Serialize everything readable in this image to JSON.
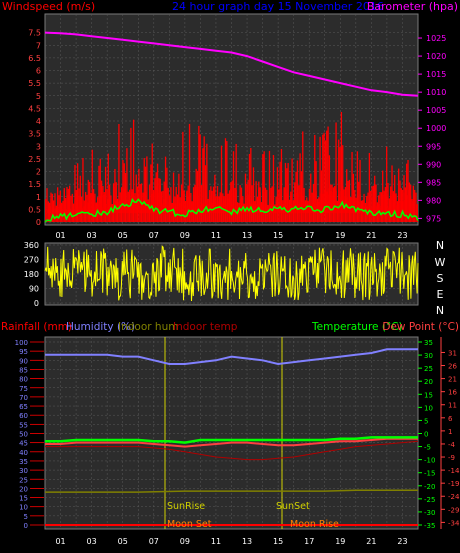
{
  "header": {
    "left_label": "Windspeed (m/s)",
    "title": "24 hour graph day  15 November 2016",
    "right_label": "Barometer (hpa)"
  },
  "hour_ticks": [
    "01",
    "03",
    "05",
    "07",
    "09",
    "11",
    "13",
    "15",
    "17",
    "19",
    "21",
    "23"
  ],
  "compass_labels": [
    "N",
    "W",
    "S",
    "E",
    "N"
  ],
  "bottom_header": {
    "rainfall": "Rainfall (mm)",
    "humidity": "Humidity (%)",
    "indoor_hum": "Indoor hum",
    "indoor_temp": "Indoor temp",
    "temperature": "Temperature (°C)",
    "dew_point": "Dew Point (°C)"
  },
  "events": {
    "sunrise": "SunRise",
    "sunset": "SunSet",
    "moonset": "Moon Set",
    "moonrise": "Moon Rise"
  },
  "colors": {
    "wind": "#ff0000",
    "gust": "#ff0000",
    "avg_wind": "#00ff00",
    "barometer": "#ff00ff",
    "title": "#0000ff",
    "direction": "#ffff00",
    "humidity": "#8080ff",
    "temperature": "#00ff00",
    "dewpoint": "#ff4040",
    "indoor_temp": "#b00000",
    "indoor_hum": "#808000",
    "rainfall": "#ff0000"
  },
  "chart_data": [
    {
      "type": "line",
      "id": "wind_baro",
      "x_label": "hour",
      "xlim": [
        0,
        24
      ],
      "y_left": {
        "label": "Windspeed (m/s)",
        "ylim": [
          0,
          8
        ],
        "ticks": [
          0,
          0.5,
          1,
          1.5,
          2,
          2.5,
          3,
          3.5,
          4,
          4.5,
          5,
          5.5,
          6,
          6.5,
          7,
          7.5
        ]
      },
      "y_right": {
        "label": "Barometer (hpa)",
        "ylim": [
          974,
          1030
        ],
        "ticks": [
          975,
          980,
          985,
          990,
          995,
          1000,
          1005,
          1010,
          1015,
          1020,
          1025
        ]
      },
      "series": [
        {
          "name": "Barometer",
          "axis": "right",
          "x": [
            0,
            1,
            2,
            3,
            4,
            5,
            6,
            7,
            8,
            9,
            10,
            11,
            12,
            13,
            14,
            15,
            16,
            17,
            18,
            19,
            20,
            21,
            22,
            23,
            24
          ],
          "y": [
            1026.5,
            1026.3,
            1026,
            1025.5,
            1025,
            1024.5,
            1024,
            1023.5,
            1023,
            1022.5,
            1022,
            1021.5,
            1021,
            1020,
            1018.5,
            1017,
            1015.5,
            1014.5,
            1013.5,
            1012.5,
            1011.5,
            1010.5,
            1010,
            1009.3,
            1009
          ]
        },
        {
          "name": "Wind gust",
          "axis": "left",
          "x": [
            0,
            1,
            2,
            3,
            4,
            5,
            6,
            7,
            8,
            9,
            10,
            11,
            12,
            13,
            14,
            15,
            16,
            17,
            18,
            19,
            20,
            21,
            22,
            23,
            24
          ],
          "y": [
            1.5,
            1.5,
            2.5,
            3.5,
            3,
            5,
            4.5,
            3.5,
            3.5,
            4.5,
            4,
            4,
            3,
            4,
            4,
            3,
            4,
            4,
            4,
            4.5,
            4,
            3,
            3,
            3.5,
            1.5
          ]
        },
        {
          "name": "Average wind",
          "axis": "left",
          "x": [
            0,
            1,
            2,
            3,
            4,
            5,
            6,
            7,
            8,
            9,
            10,
            11,
            12,
            13,
            14,
            15,
            16,
            17,
            18,
            19,
            20,
            21,
            22,
            23,
            24
          ],
          "y": [
            0.1,
            0.2,
            0.3,
            0.3,
            0.4,
            0.7,
            0.8,
            0.5,
            0.4,
            0.3,
            0.5,
            0.5,
            0.4,
            0.5,
            0.5,
            0.5,
            0.5,
            0.5,
            0.5,
            0.7,
            0.5,
            0.4,
            0.3,
            0.3,
            0.1
          ]
        }
      ]
    },
    {
      "type": "line",
      "id": "wind_direction",
      "xlim": [
        0,
        24
      ],
      "ylim": [
        0,
        360
      ],
      "yticks": [
        0,
        90,
        180,
        270,
        360
      ],
      "series": [
        {
          "name": "Wind direction",
          "x": [
            0,
            1,
            2,
            3,
            4,
            5,
            6,
            7,
            8,
            9,
            10,
            11,
            12,
            13,
            14,
            15,
            16,
            17,
            18,
            19,
            20,
            21,
            22,
            23,
            24
          ],
          "y": [
            200,
            180,
            190,
            170,
            185,
            175,
            180,
            190,
            200,
            180,
            170,
            175,
            185,
            180,
            175,
            190,
            180,
            185,
            190,
            175,
            180,
            185,
            190,
            180,
            185
          ]
        }
      ]
    },
    {
      "type": "line",
      "id": "temp_hum",
      "xlim": [
        0,
        24
      ],
      "y_left": {
        "label": "Humidity (%)",
        "ylim": [
          0,
          100
        ],
        "ticks": [
          0,
          5,
          10,
          15,
          20,
          25,
          30,
          35,
          40,
          45,
          50,
          55,
          60,
          65,
          70,
          75,
          80,
          85,
          90,
          95,
          100
        ]
      },
      "y_right_temp": {
        "label": "Temperature (°C)",
        "ylim": [
          -35,
          35
        ],
        "ticks": [
          -35,
          -30,
          -25,
          -20,
          -15,
          -10,
          -5,
          0,
          5,
          10,
          15,
          20,
          25,
          30,
          35
        ]
      },
      "y_right_dew": {
        "label": "Dew Point (°C)",
        "ylim": [
          -35,
          35
        ],
        "ticks": [
          -34,
          -29,
          -24,
          -19,
          -14,
          -9,
          -4,
          1,
          6,
          11,
          16,
          21,
          26,
          31
        ]
      },
      "series": [
        {
          "name": "Humidity",
          "axis": "left",
          "x": [
            0,
            1,
            2,
            3,
            4,
            5,
            6,
            7,
            8,
            9,
            10,
            11,
            12,
            13,
            14,
            15,
            16,
            17,
            18,
            19,
            20,
            21,
            22,
            23,
            24
          ],
          "y": [
            93,
            93,
            93,
            93,
            93,
            92,
            92,
            90,
            88,
            88,
            89,
            90,
            92,
            91,
            90,
            88,
            89,
            90,
            91,
            92,
            93,
            94,
            96,
            96,
            96
          ]
        },
        {
          "name": "Temperature",
          "axis": "right",
          "x": [
            0,
            1,
            2,
            3,
            4,
            5,
            6,
            7,
            8,
            9,
            10,
            11,
            12,
            13,
            14,
            15,
            16,
            17,
            18,
            19,
            20,
            21,
            22,
            23,
            24
          ],
          "y": [
            -3,
            -3,
            -2.5,
            -2.5,
            -2.5,
            -2.5,
            -2.5,
            -3,
            -3,
            -3.5,
            -2.5,
            -2.5,
            -2.5,
            -2.5,
            -2.5,
            -2.5,
            -2.5,
            -2.5,
            -2.5,
            -2,
            -2,
            -1.5,
            -1.5,
            -1.5,
            -1.5
          ]
        },
        {
          "name": "Dew Point",
          "axis": "right",
          "x": [
            0,
            1,
            2,
            3,
            4,
            5,
            6,
            7,
            8,
            9,
            10,
            11,
            12,
            13,
            14,
            15,
            16,
            17,
            18,
            19,
            20,
            21,
            22,
            23,
            24
          ],
          "y": [
            -4,
            -4,
            -3.5,
            -3.5,
            -3.5,
            -3.5,
            -3.5,
            -4,
            -4.5,
            -5,
            -4.5,
            -4,
            -3.5,
            -3.5,
            -4,
            -4.5,
            -4.5,
            -4,
            -3.5,
            -3,
            -3,
            -2.5,
            -2,
            -2,
            -2
          ]
        },
        {
          "name": "Indoor temp",
          "axis": "right",
          "x": [
            0,
            2,
            4,
            6,
            8,
            9,
            10,
            11,
            12,
            13,
            14,
            15,
            16,
            17,
            18,
            19,
            20,
            22,
            24
          ],
          "y": [
            -5,
            -5,
            -5,
            -5,
            -6,
            -7,
            -8,
            -9,
            -9.5,
            -10,
            -10,
            -9.5,
            -9,
            -8,
            -7,
            -6,
            -5,
            -4,
            -3
          ]
        },
        {
          "name": "Indoor hum",
          "axis": "left",
          "x": [
            0,
            3,
            6,
            9,
            12,
            15,
            18,
            20,
            22,
            24
          ],
          "y": [
            18,
            18,
            18,
            18.5,
            18.5,
            18.5,
            18.5,
            19,
            19,
            19
          ]
        },
        {
          "name": "Rainfall",
          "axis": "left",
          "x": [
            0,
            24
          ],
          "y": [
            0,
            0
          ]
        }
      ]
    }
  ]
}
